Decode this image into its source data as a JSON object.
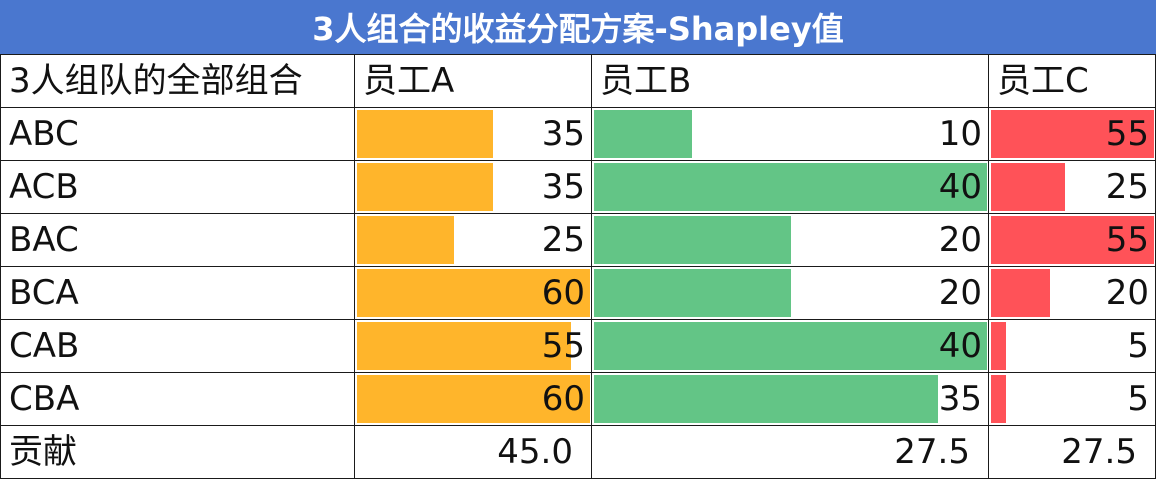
{
  "title": "3人组合的收益分配方案-Shapley值",
  "header": {
    "combos": "3人组队的全部组合",
    "employees": [
      "员工A",
      "员工B",
      "员工C"
    ]
  },
  "colors": {
    "title_bg": "#4A77CF",
    "bar_a": "#FFB52B",
    "bar_b": "#63C586",
    "bar_c": "#FF5258"
  },
  "bar_scale_max": [
    60,
    40,
    55
  ],
  "rows": [
    {
      "label": "ABC",
      "values": [
        35,
        10,
        55
      ]
    },
    {
      "label": "ACB",
      "values": [
        35,
        40,
        25
      ]
    },
    {
      "label": "BAC",
      "values": [
        25,
        20,
        55
      ]
    },
    {
      "label": "BCA",
      "values": [
        60,
        20,
        20
      ]
    },
    {
      "label": "CAB",
      "values": [
        55,
        40,
        5
      ]
    },
    {
      "label": "CBA",
      "values": [
        60,
        35,
        5
      ]
    }
  ],
  "contribution": {
    "label": "贡献",
    "values": [
      "45.0",
      "27.5",
      "27.5"
    ]
  }
}
